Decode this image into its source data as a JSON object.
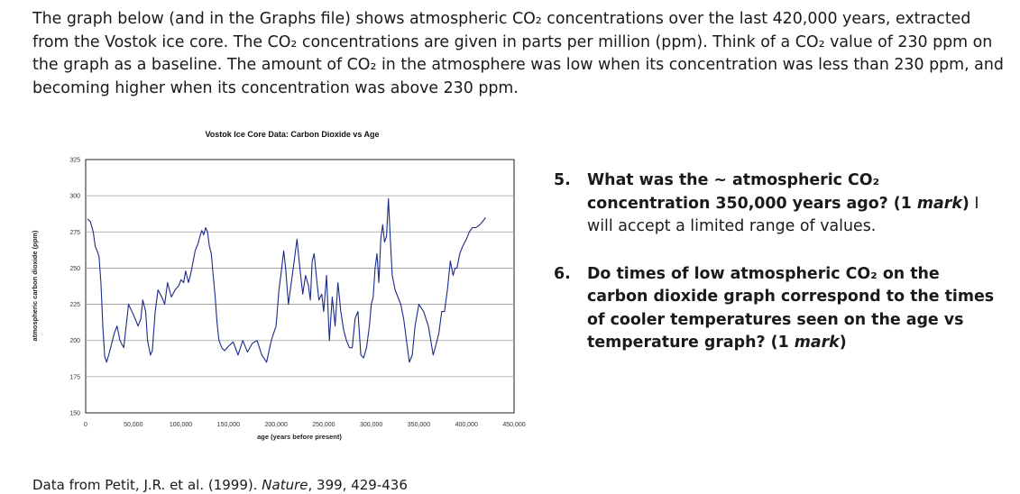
{
  "intro": {
    "p1": "The graph below (and in the Graphs file) shows atmospheric CO₂ concentrations over the last 420,000 years, extracted from the Vostok ice core. The CO₂ concentrations are given in parts per million (ppm). Think of a CO₂ value of 230 ppm on the graph as a baseline. The amount of CO₂ in the atmosphere was low when its concentration was less than 230 ppm, and becoming higher when its concentration was above 230 ppm."
  },
  "chart_data": {
    "type": "line",
    "title": "Vostok Ice Core Data: Carbon Dioxide vs Age",
    "xlabel": "age (years before present)",
    "ylabel": "atmospheric carbon dioxide (ppm)",
    "xlim": [
      0,
      450000
    ],
    "ylim": [
      150,
      325
    ],
    "xticks": [
      "0",
      "50,000",
      "100,000",
      "150,000",
      "200,000",
      "250,000",
      "300,000",
      "350,000",
      "400,000",
      "450,000"
    ],
    "yticks": [
      "150",
      "175",
      "200",
      "225",
      "250",
      "275",
      "300",
      "325"
    ],
    "grid": "horizontal",
    "legend": "none",
    "color": "#1b2a8a",
    "series": [
      {
        "x": [
          2000,
          5000,
          8000,
          10000,
          12000,
          14000,
          16000,
          18000,
          20000,
          22000,
          25000,
          30000,
          33000,
          36000,
          40000,
          45000,
          50000,
          55000,
          58000,
          60000,
          63000,
          65000,
          68000,
          70000,
          73000,
          76000,
          80000,
          83000,
          86000,
          90000,
          94000,
          98000,
          100000,
          103000,
          105000,
          108000,
          110000,
          113000,
          115000,
          118000,
          120000,
          122000,
          124000,
          126000,
          128000,
          130000,
          132000,
          134000,
          136000,
          138000,
          140000,
          143000,
          146000,
          150000,
          155000,
          160000,
          165000,
          170000,
          175000,
          180000,
          185000,
          190000,
          195000,
          200000,
          203000,
          205000,
          208000,
          210000,
          213000,
          216000,
          219000,
          222000,
          225000,
          228000,
          231000,
          234000,
          236000,
          238000,
          240000,
          243000,
          245000,
          248000,
          250000,
          253000,
          256000,
          259000,
          262000,
          265000,
          268000,
          271000,
          274000,
          277000,
          280000,
          283000,
          286000,
          289000,
          292000,
          295000,
          298000,
          300000,
          302000,
          304000,
          306000,
          308000,
          310000,
          312000,
          314000,
          316000,
          318000,
          320000,
          322000,
          325000,
          328000,
          331000,
          334000,
          337000,
          340000,
          343000,
          346000,
          350000,
          355000,
          360000,
          365000,
          368000,
          371000,
          374000,
          377000,
          380000,
          383000,
          386000,
          388000,
          390000,
          393000,
          396000,
          400000,
          403000,
          406000,
          410000,
          414000,
          418000,
          420000
        ],
        "values": [
          284,
          282,
          275,
          265,
          262,
          258,
          240,
          210,
          189,
          185,
          192,
          205,
          210,
          200,
          195,
          225,
          218,
          210,
          215,
          228,
          220,
          200,
          190,
          193,
          220,
          235,
          230,
          225,
          240,
          230,
          235,
          238,
          242,
          240,
          248,
          240,
          245,
          255,
          262,
          267,
          272,
          276,
          273,
          278,
          275,
          265,
          260,
          245,
          230,
          212,
          200,
          195,
          193,
          196,
          199,
          190,
          200,
          192,
          198,
          200,
          190,
          185,
          200,
          210,
          235,
          245,
          262,
          250,
          225,
          240,
          255,
          270,
          250,
          232,
          245,
          238,
          228,
          255,
          260,
          240,
          228,
          232,
          220,
          245,
          200,
          230,
          210,
          240,
          220,
          207,
          200,
          195,
          195,
          215,
          220,
          190,
          188,
          195,
          210,
          225,
          230,
          250,
          260,
          240,
          270,
          280,
          268,
          272,
          298,
          270,
          245,
          235,
          230,
          225,
          215,
          200,
          185,
          190,
          210,
          225,
          220,
          210,
          190,
          197,
          205,
          220,
          220,
          235,
          255,
          245,
          250,
          250,
          260,
          265,
          270,
          275,
          278,
          278,
          280,
          283,
          285
        ]
      }
    ]
  },
  "questions": [
    {
      "number": "5.",
      "text_bold": "What was the ~ atmospheric CO₂ concentration 350,000 years ago? (1 ",
      "mark_word": "mark",
      "close": ")",
      "text_normal": " I will accept a limited range of values."
    },
    {
      "number": "6.",
      "text_bold": "Do times of low atmospheric CO₂ on the carbon dioxide graph correspond to the times of cooler temperatures seen on the age vs temperature graph?  (1 ",
      "mark_word": "mark",
      "close": ")",
      "text_normal": ""
    }
  ],
  "source": {
    "before": "Data from Petit, J.R. et al. (1999). ",
    "journal": "Nature",
    "after": ", 399, 429-436"
  }
}
